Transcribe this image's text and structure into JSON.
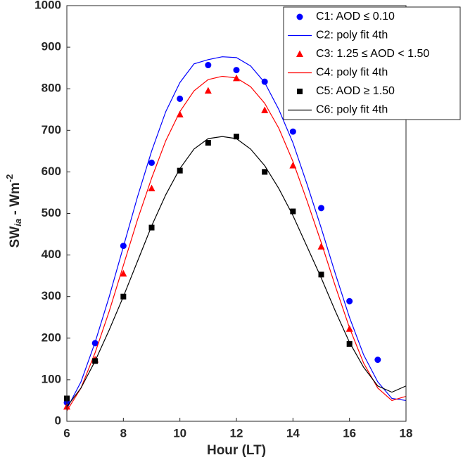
{
  "chart_data": {
    "type": "line",
    "x_label": "Hour (LT)",
    "y_label": {
      "main": "SW",
      "subscript": "ia",
      "unit": " - Wm",
      "superscript": "-2"
    },
    "xlim": [
      6,
      18
    ],
    "xticks": [
      6,
      8,
      10,
      12,
      14,
      16,
      18
    ],
    "ylim": [
      0,
      1000
    ],
    "yticks": [
      0,
      100,
      200,
      300,
      400,
      500,
      600,
      700,
      800,
      900,
      1000
    ],
    "grid": false,
    "legend": "upper right",
    "series": [
      {
        "name": "C1: AOD ≤ 0.10",
        "color": "#0000ff",
        "marker": "circle",
        "x": [
          6,
          7,
          8,
          9,
          10,
          11,
          12,
          13,
          14,
          15,
          16,
          17
        ],
        "values": [
          45,
          188,
          422,
          622,
          776,
          857,
          845,
          817,
          697,
          513,
          289,
          148
        ]
      },
      {
        "name": "C2: poly fit 4th",
        "color": "#0000ff",
        "marker": "none",
        "x": [
          6,
          6.5,
          7,
          7.5,
          8,
          8.5,
          9,
          9.5,
          10,
          10.5,
          11,
          11.5,
          12,
          12.5,
          13,
          13.5,
          14,
          14.5,
          15,
          15.5,
          16,
          16.5,
          17,
          17.5,
          18
        ],
        "values": [
          30,
          95,
          190,
          300,
          420,
          540,
          650,
          745,
          815,
          860,
          870,
          877,
          875,
          855,
          815,
          750,
          670,
          570,
          465,
          355,
          250,
          160,
          95,
          55,
          50
        ]
      },
      {
        "name": "C3: 1.25 ≤ AOD < 1.50",
        "color": "#ff0000",
        "marker": "triangle",
        "x": [
          6,
          7,
          8,
          9,
          10,
          11,
          12,
          13,
          14,
          15,
          16
        ],
        "values": [
          35,
          148,
          355,
          560,
          738,
          795,
          825,
          748,
          615,
          420,
          222
        ]
      },
      {
        "name": "C4: poly fit 4th",
        "color": "#ff0000",
        "marker": "none",
        "x": [
          6,
          6.5,
          7,
          7.5,
          8,
          8.5,
          9,
          9.5,
          10,
          10.5,
          11,
          11.5,
          12,
          12.5,
          13,
          13.5,
          14,
          14.5,
          15,
          15.5,
          16,
          16.5,
          17,
          17.5,
          18
        ],
        "values": [
          25,
          80,
          165,
          265,
          375,
          485,
          585,
          675,
          745,
          795,
          822,
          830,
          826,
          805,
          765,
          705,
          625,
          530,
          430,
          325,
          225,
          140,
          80,
          50,
          60
        ]
      },
      {
        "name": "C5: AOD ≥ 1.50",
        "color": "#000000",
        "marker": "square",
        "x": [
          6,
          7,
          8,
          9,
          10,
          11,
          12,
          13,
          14,
          15,
          16
        ],
        "values": [
          55,
          145,
          300,
          466,
          603,
          670,
          685,
          600,
          505,
          353,
          186
        ]
      },
      {
        "name": "C6: poly fit 4th",
        "color": "#000000",
        "marker": "none",
        "x": [
          6,
          6.5,
          7,
          7.5,
          8,
          8.5,
          9,
          9.5,
          10,
          10.5,
          11,
          11.5,
          12,
          12.5,
          13,
          13.5,
          14,
          14.5,
          15,
          15.5,
          16,
          16.5,
          17,
          17.5,
          18
        ],
        "values": [
          35,
          80,
          145,
          220,
          300,
          385,
          470,
          545,
          608,
          655,
          680,
          685,
          680,
          655,
          615,
          560,
          495,
          420,
          345,
          265,
          190,
          130,
          85,
          70,
          85
        ]
      }
    ]
  }
}
